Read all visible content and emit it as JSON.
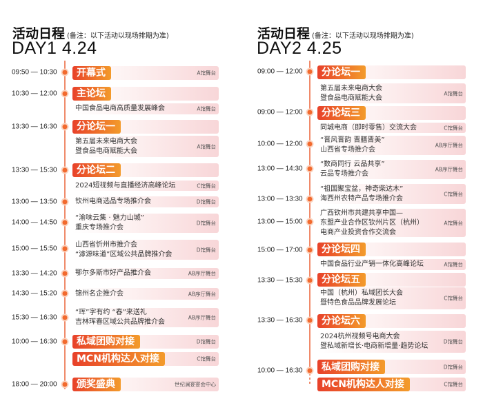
{
  "accent": "#e8452a",
  "columns": [
    {
      "heading": "活动日程",
      "note": "(备注：以下活动以现场排期为准)",
      "day": "DAY1  4.24",
      "items": [
        {
          "time": "09:50 — 10:30",
          "events": [
            {
              "badge": "开幕式",
              "venue": "A馆舞台"
            }
          ]
        },
        {
          "time": "10:30 — 12:00",
          "events": [
            {
              "badge": "主论坛"
            },
            {
              "lines": [
                "中国食品电商高质量发展峰会"
              ],
              "venue": "A馆舞台"
            }
          ]
        },
        {
          "time": "13:30 — 16:30",
          "events": [
            {
              "badge": "分论坛一"
            },
            {
              "lines": [
                "第五届未来电商大会",
                "暨食品电商赋能大会"
              ],
              "venue": "A馆舞台"
            }
          ]
        },
        {
          "time": "13:30 — 15:30",
          "events": [
            {
              "badge": "分论坛二"
            },
            {
              "lines": [
                "2024短视频与直播经济高峰论坛"
              ],
              "venue": "C馆舞台"
            }
          ]
        },
        {
          "time": "13:00 — 13:50",
          "events": [
            {
              "lines": [
                "钦州电商选品专场推介会"
              ],
              "venue": "D馆舞台"
            }
          ]
        },
        {
          "time": "14:00 — 14:50",
          "events": [
            {
              "lines": [
                "“渝味云集 · 魅力山城”",
                "重庆专场推介会"
              ],
              "venue": "D馆舞台"
            }
          ]
        },
        {
          "time": "15:00 — 15:50",
          "events": [
            {
              "lines": [
                "山西省忻州市推介会",
                "“滹源味道”区域公共品牌推介会"
              ],
              "venue": "D馆舞台"
            }
          ]
        },
        {
          "time": "13:30 — 14:20",
          "events": [
            {
              "lines": [
                "鄂尔多斯市好产品推介会"
              ],
              "venue": "AB序厅舞台"
            }
          ]
        },
        {
          "time": "14:30 — 15:20",
          "events": [
            {
              "lines": [
                "锦州名企推介会"
              ],
              "venue": "AB序厅舞台"
            }
          ]
        },
        {
          "time": "15:30 — 16:30",
          "events": [
            {
              "lines": [
                "“珲”字有约 “春”来送礼",
                "吉林珲春区域公共品牌推介会"
              ],
              "venue": "AB序厅舞台"
            }
          ]
        },
        {
          "time": "10:00 — 16:30",
          "events": [
            {
              "badge": "私域团购对接",
              "venue": "D馆舞台"
            },
            {
              "badge": "MCN机构达人对接",
              "venue": "C馆舞台"
            }
          ]
        },
        {
          "time": "18:00 — 20:00",
          "events": [
            {
              "badge": "颁奖盛典",
              "venue": "世纪澜宴宴会中心"
            }
          ]
        }
      ]
    },
    {
      "heading": "活动日程",
      "note": "(备注：以下活动以现场排期为准)",
      "day": "DAY2  4.25",
      "items": [
        {
          "time": "09:00 — 12:00",
          "events": [
            {
              "badge": "分论坛一"
            },
            {
              "lines": [
                "第五届未来电商大会",
                "暨食品电商赋能大会"
              ],
              "venue": "A馆舞台"
            }
          ]
        },
        {
          "time": "09:00 — 12:00",
          "events": [
            {
              "badge": "分论坛三"
            },
            {
              "lines": [
                "同城电商（即时零售）交流大会"
              ],
              "venue": "C馆舞台"
            }
          ]
        },
        {
          "time": "10:00 — 12:00",
          "events": [
            {
              "lines": [
                "“晋风晋韵 晋膳晋美”",
                "山西省专场推介会"
              ],
              "venue": "AB序厅舞台"
            }
          ]
        },
        {
          "time": "13:00 — 14:30",
          "events": [
            {
              "lines": [
                "“数商同行 云品共享”",
                "云品专场推介会"
              ],
              "venue": "AB序厅舞台"
            }
          ]
        },
        {
          "time": "13:00 — 13:30",
          "events": [
            {
              "lines": [
                "“祖国聚宝盆，神奇柴达木”",
                "海西州农特产品专场推介会"
              ],
              "venue": "C馆舞台"
            }
          ]
        },
        {
          "time": "13:00 — 15:00",
          "events": [
            {
              "lines": [
                "广西钦州市共建共享中国—",
                "东盟产业合作区钦州片区（杭州）",
                "电商产业投资合作交流会"
              ],
              "venue": "A馆舞台"
            }
          ]
        },
        {
          "time": "15:00 — 17:00",
          "events": [
            {
              "badge": "分论坛四"
            },
            {
              "lines": [
                "中国食品行业产销一体化高峰论坛"
              ],
              "venue": "A馆舞台"
            }
          ]
        },
        {
          "time": "13:30 — 15:30",
          "events": [
            {
              "badge": "分论坛五"
            },
            {
              "lines": [
                "中国（杭州）私域团长大会",
                "暨特色食品品牌发展论坛"
              ],
              "venue": "C馆舞台"
            }
          ]
        },
        {
          "time": "13:30 — 16:30",
          "events": [
            {
              "badge": "分论坛六"
            },
            {
              "lines": [
                "2024杭州视频号电商大会",
                "暨私域新增长·电商新增量·趋势论坛"
              ],
              "venue": "D馆舞台"
            }
          ]
        },
        {
          "time": "10:00 — 16:30",
          "events": [
            {
              "badge": "私域团购对接",
              "venue": "D馆舞台"
            },
            {
              "badge": "MCN机构达人对接",
              "venue": "C馆舞台"
            }
          ]
        }
      ]
    }
  ]
}
